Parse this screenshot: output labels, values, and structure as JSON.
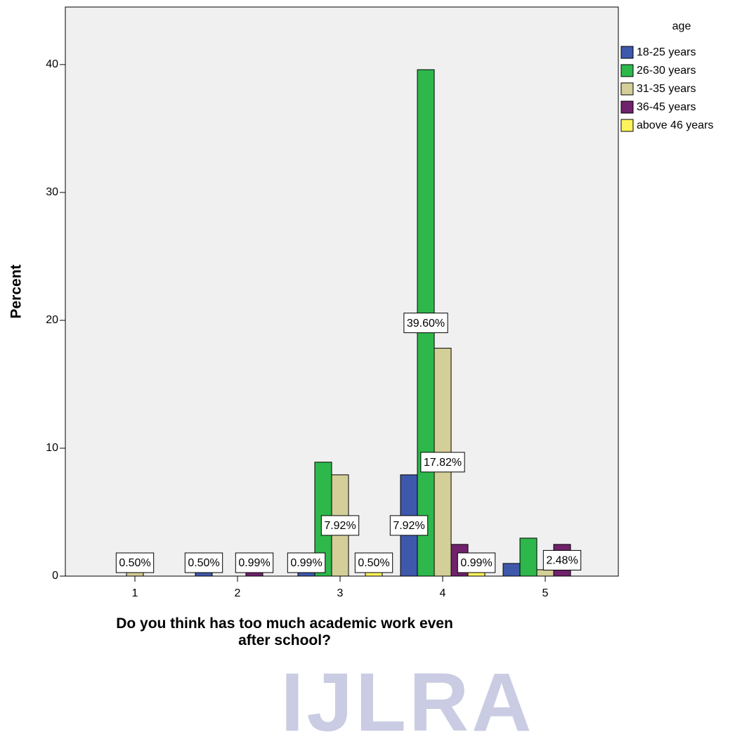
{
  "chart_data": {
    "type": "bar",
    "y_label": "Percent",
    "x_label": "Do you think has too much academic work even after school?",
    "legend_title": "age",
    "legend_position": "right",
    "categories": [
      "1",
      "2",
      "3",
      "4",
      "5"
    ],
    "series": [
      {
        "name": "18-25 years",
        "color": "#3e58ac",
        "values": [
          0,
          0.5,
          0.99,
          7.92,
          0.99
        ],
        "value_labels": [
          null,
          "0.50%",
          "0.99%",
          "7.92%",
          null
        ]
      },
      {
        "name": "26-30 years",
        "color": "#2eb84b",
        "values": [
          0,
          0,
          8.91,
          39.6,
          2.97
        ],
        "value_labels": [
          null,
          null,
          null,
          "39.60%",
          null
        ]
      },
      {
        "name": "31-35 years",
        "color": "#d4ce98",
        "values": [
          0.5,
          0,
          7.92,
          17.82,
          0.5
        ],
        "value_labels": [
          "0.50%",
          null,
          "7.92%",
          "17.82%",
          null
        ]
      },
      {
        "name": "36-45 years",
        "color": "#70226c",
        "values": [
          0,
          0.99,
          0,
          2.48,
          2.48
        ],
        "value_labels": [
          null,
          "0.99%",
          null,
          null,
          "2.48%"
        ]
      },
      {
        "name": "above 46 years",
        "color": "#fcf45c",
        "values": [
          0,
          0,
          0.5,
          0.99,
          0
        ],
        "value_labels": [
          null,
          null,
          "0.50%",
          "0.99%",
          null
        ]
      }
    ],
    "ylim": [
      0,
      44.5
    ],
    "yticks": [
      0,
      10,
      20,
      30,
      40
    ],
    "grid": false,
    "background": "#f0f0f0"
  },
  "watermark": "IJLRA"
}
